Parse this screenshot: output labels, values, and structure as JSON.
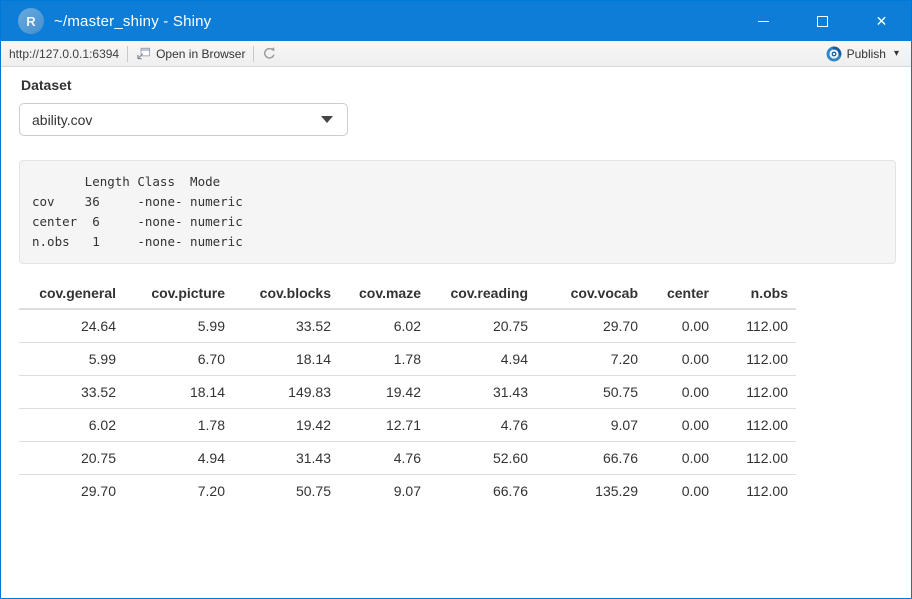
{
  "window": {
    "title": "~/master_shiny - Shiny",
    "app_icon_letter": "R"
  },
  "toolbar": {
    "url": "http://127.0.0.1:6394",
    "open_in_browser_label": "Open in Browser",
    "publish_label": "Publish"
  },
  "icons": {
    "close": "✕",
    "publish_caret": "▾"
  },
  "main": {
    "dataset_label": "Dataset",
    "dataset_selected": "ability.cov",
    "summary_text": "       Length Class  Mode   \ncov    36     -none- numeric\ncenter  6     -none- numeric\nn.obs   1     -none- numeric",
    "table": {
      "columns": [
        "cov.general",
        "cov.picture",
        "cov.blocks",
        "cov.maze",
        "cov.reading",
        "cov.vocab",
        "center",
        "n.obs"
      ],
      "rows": [
        [
          "24.64",
          "5.99",
          "33.52",
          "6.02",
          "20.75",
          "29.70",
          "0.00",
          "112.00"
        ],
        [
          "5.99",
          "6.70",
          "18.14",
          "1.78",
          "4.94",
          "7.20",
          "0.00",
          "112.00"
        ],
        [
          "33.52",
          "18.14",
          "149.83",
          "19.42",
          "31.43",
          "50.75",
          "0.00",
          "112.00"
        ],
        [
          "6.02",
          "1.78",
          "19.42",
          "12.71",
          "4.76",
          "9.07",
          "0.00",
          "112.00"
        ],
        [
          "20.75",
          "4.94",
          "31.43",
          "4.76",
          "52.60",
          "66.76",
          "0.00",
          "112.00"
        ],
        [
          "29.70",
          "7.20",
          "50.75",
          "9.07",
          "66.76",
          "135.29",
          "0.00",
          "112.00"
        ]
      ]
    }
  },
  "colors": {
    "titlebar": "#0d7dd8",
    "accent": "#0078d7",
    "toolbar_bg": "#f2f2f2",
    "summary_box_bg": "#f5f5f5",
    "table_border": "#dddddd",
    "text": "#333333",
    "publish_icon_blue": "#2e86c8",
    "publish_icon_dark": "#135d9e"
  }
}
